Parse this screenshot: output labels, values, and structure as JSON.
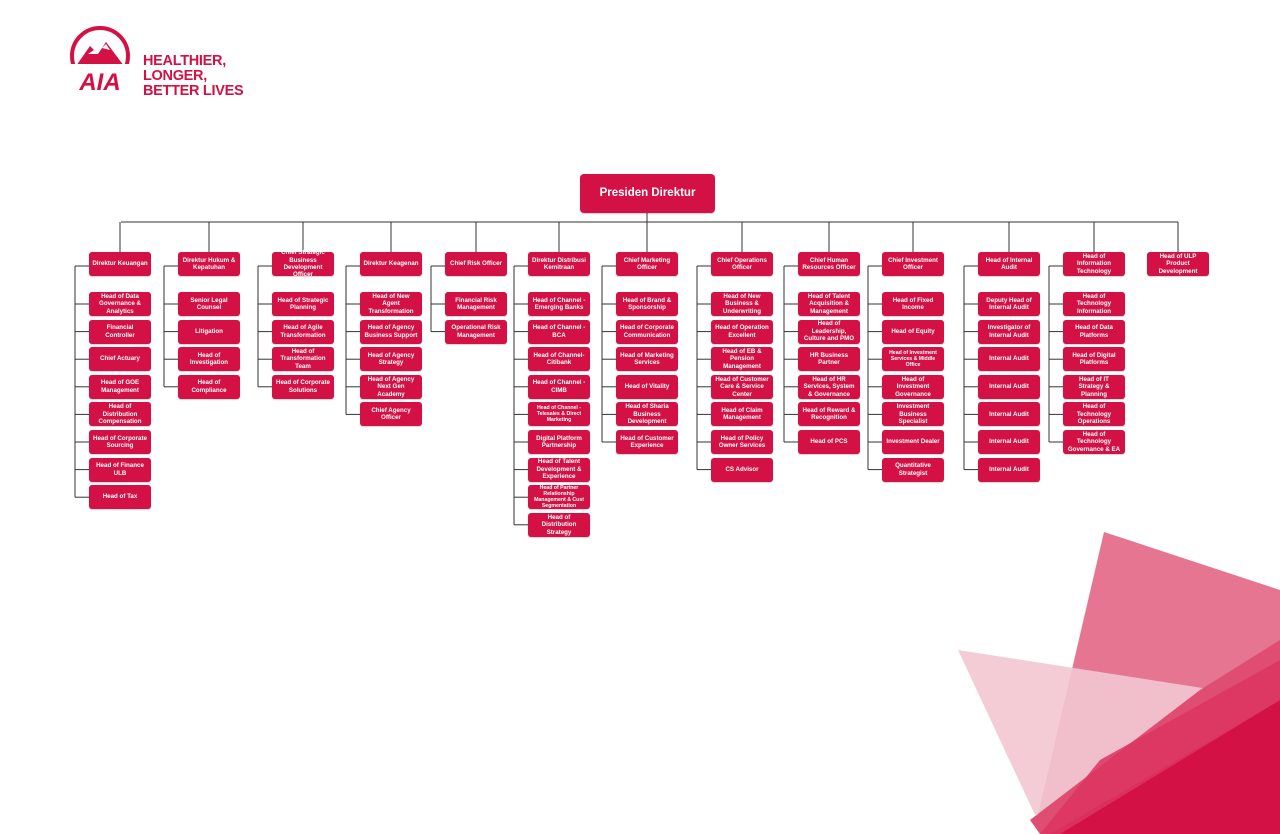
{
  "brand": {
    "logo_text": "AIA",
    "tagline_lines": [
      "HEALTHIER, LONGER,",
      "BETTER LIVES"
    ],
    "accent_color": "#d31145"
  },
  "org": {
    "president": "Presiden Direktur",
    "divisions": [
      {
        "title": "Direktur Keuangan",
        "children": [
          "Head of Data Governance & Analytics",
          "Financial Controller",
          "Chief Actuary",
          "Head of GOE Management",
          "Head of Distribution Compensation",
          "Head of Corporate Sourcing",
          "Head of Finance ULB",
          "Head of Tax"
        ]
      },
      {
        "title": "Direktur Hukum & Kepatuhan",
        "children": [
          "Senior Legal Counsel",
          "Litigation",
          "Head of Investigation",
          "Head of Compliance"
        ]
      },
      {
        "title": "Chief Strategic Business Development Officer",
        "children": [
          "Head of Strategic Planning",
          "Head of Agile Transformation",
          "Head of Transformation Team",
          "Head of Corporate Solutions"
        ]
      },
      {
        "title": "Direktur Keagenan",
        "children": [
          "Head of New Agent Transformation",
          "Head of Agency Business Support",
          "Head of Agency Strategy",
          "Head of Agency Next Gen Academy",
          "Chief Agency Officer"
        ]
      },
      {
        "title": "Chief Risk Officer",
        "children": [
          "Financial Risk Management",
          "Operational Risk Management"
        ]
      },
      {
        "title": "Direktur Distribusi Kemitraan",
        "children": [
          "Head of Channel - Emerging Banks",
          "Head of Channel - BCA",
          "Head of Channel-Citibank",
          "Head of Channel - CIMB",
          "Head of Channel - Telesales & Direct Marketing",
          "Digital Platform Partnership",
          "Head of Talent Development & Experience",
          "Head of Partner Relationship Management & Cust Segmentation",
          "Head of Distribution Strategy"
        ]
      },
      {
        "title": "Chief Marketing Officer",
        "children": [
          "Head of Brand & Sponsorship",
          "Head of Corporate Communication",
          "Head of Marketing Services",
          "Head of Vitality",
          "Head of Sharia Business Development",
          "Head of Customer Experience"
        ]
      },
      {
        "title": "Chief Operations Officer",
        "children": [
          "Head of New Business & Underwriting",
          "Head of Operation Excellent",
          "Head of EB & Pension Management",
          "Head of Customer Care & Service Center",
          "Head of Claim Management",
          "Head of Policy Owner Services",
          "CS Advisor"
        ]
      },
      {
        "title": "Chief Human Resources Officer",
        "children": [
          "Head of Talent Acquisition & Management",
          "Head of Leadership, Culture and PMO",
          "HR Business Partner",
          "Head of HR Services, System & Governance",
          "Head of Reward & Recognition",
          "Head of PCS"
        ]
      },
      {
        "title": "Chief Investment Officer",
        "children": [
          "Head of Fixed Income",
          "Head of Equity",
          "Head of Investment Services & Middle Office",
          "Head of Investment Governance",
          "Investment Business Specialist",
          "Investment Dealer",
          "Quantitative Strategist"
        ]
      },
      {
        "title": "Head of Internal Audit",
        "children": [
          "Deputy Head of Internal Audit",
          "Investigator of Internal Audit",
          "Internal Audit",
          "Internal Audit",
          "Internal Audit",
          "Internal Audit",
          "Internal Audit"
        ]
      },
      {
        "title": "Head of Information Technology",
        "children": [
          "Head of Technology Information",
          "Head of Data Platforms",
          "Head of Digital Platforms",
          "Head of IT Strategy & Planning",
          "Head of Technology Operations",
          "Head of Technology Governance & EA"
        ]
      },
      {
        "title": "Head of ULP Product Development",
        "children": []
      }
    ]
  }
}
